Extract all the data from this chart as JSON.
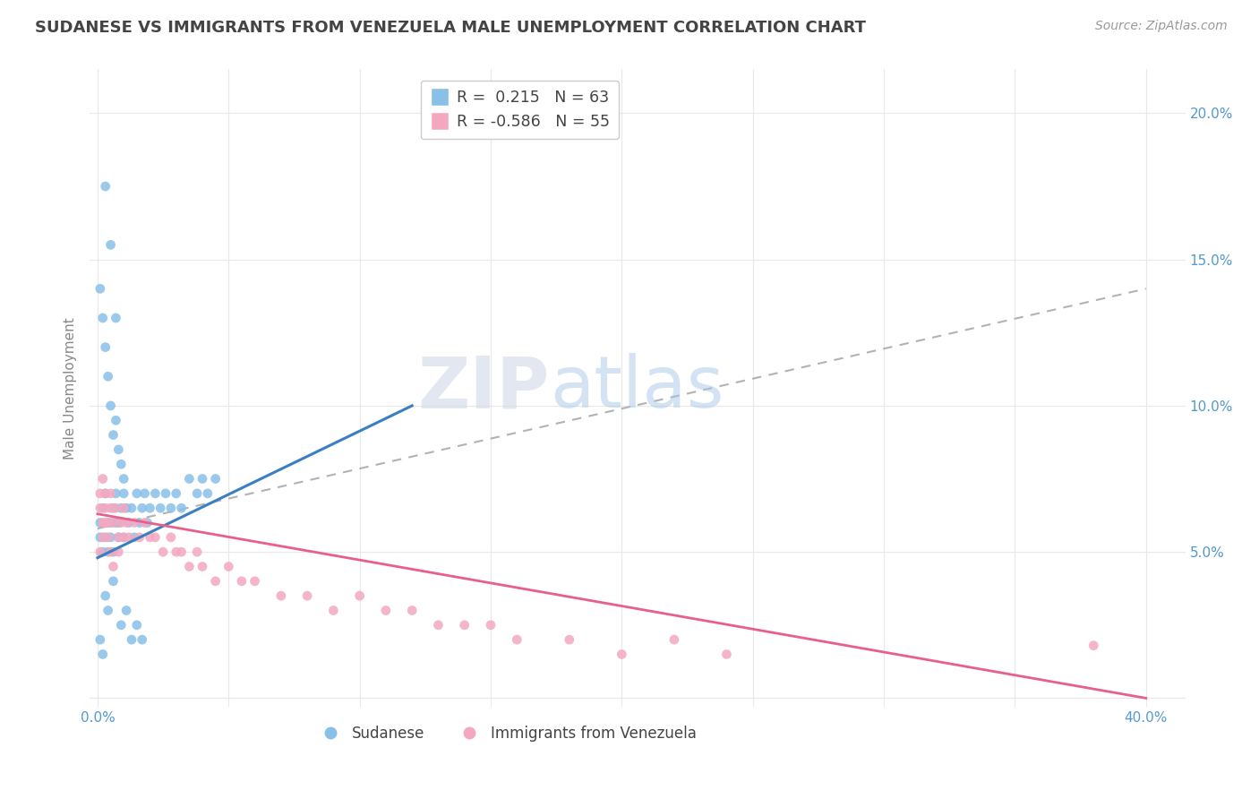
{
  "title": "SUDANESE VS IMMIGRANTS FROM VENEZUELA MALE UNEMPLOYMENT CORRELATION CHART",
  "source": "Source: ZipAtlas.com",
  "ylabel_label": "Male Unemployment",
  "watermark": "ZIPatlas",
  "sudanese_R": 0.215,
  "sudanese_N": 63,
  "venezuela_R": -0.586,
  "venezuela_N": 55,
  "xlim": [
    -0.003,
    0.415
  ],
  "ylim": [
    -0.003,
    0.215
  ],
  "blue_color": "#88c0e8",
  "pink_color": "#f4a8c0",
  "blue_line_color": "#3a7fc1",
  "pink_line_color": "#e8608a",
  "dashed_line_color": "#aaaaaa",
  "grid_color": "#e8e8e8",
  "title_color": "#444444",
  "source_color": "#999999",
  "axis_label_color": "#888888",
  "tick_label_color": "#5599cc",
  "legend_border_color": "#cccccc",
  "sudanese_x": [
    0.001,
    0.001,
    0.002,
    0.002,
    0.003,
    0.003,
    0.004,
    0.004,
    0.005,
    0.005,
    0.006,
    0.006,
    0.007,
    0.007,
    0.008,
    0.008,
    0.009,
    0.01,
    0.01,
    0.011,
    0.012,
    0.013,
    0.014,
    0.015,
    0.016,
    0.017,
    0.018,
    0.019,
    0.02,
    0.022,
    0.024,
    0.026,
    0.028,
    0.03,
    0.032,
    0.035,
    0.038,
    0.04,
    0.042,
    0.045,
    0.001,
    0.002,
    0.003,
    0.004,
    0.005,
    0.006,
    0.007,
    0.008,
    0.009,
    0.01,
    0.003,
    0.005,
    0.007,
    0.009,
    0.011,
    0.013,
    0.015,
    0.017,
    0.001,
    0.002,
    0.003,
    0.004,
    0.006
  ],
  "sudanese_y": [
    0.055,
    0.06,
    0.05,
    0.065,
    0.055,
    0.07,
    0.06,
    0.05,
    0.06,
    0.055,
    0.065,
    0.05,
    0.06,
    0.07,
    0.055,
    0.06,
    0.065,
    0.055,
    0.07,
    0.065,
    0.06,
    0.065,
    0.055,
    0.07,
    0.06,
    0.065,
    0.07,
    0.06,
    0.065,
    0.07,
    0.065,
    0.07,
    0.065,
    0.07,
    0.065,
    0.075,
    0.07,
    0.075,
    0.07,
    0.075,
    0.14,
    0.13,
    0.12,
    0.11,
    0.1,
    0.09,
    0.095,
    0.085,
    0.08,
    0.075,
    0.175,
    0.155,
    0.13,
    0.025,
    0.03,
    0.02,
    0.025,
    0.02,
    0.02,
    0.015,
    0.035,
    0.03,
    0.04
  ],
  "venezuela_x": [
    0.001,
    0.001,
    0.002,
    0.002,
    0.003,
    0.003,
    0.004,
    0.005,
    0.005,
    0.006,
    0.007,
    0.008,
    0.009,
    0.01,
    0.011,
    0.012,
    0.014,
    0.016,
    0.018,
    0.02,
    0.022,
    0.025,
    0.028,
    0.03,
    0.032,
    0.035,
    0.038,
    0.04,
    0.045,
    0.05,
    0.055,
    0.06,
    0.07,
    0.08,
    0.09,
    0.1,
    0.11,
    0.12,
    0.13,
    0.14,
    0.15,
    0.16,
    0.18,
    0.2,
    0.22,
    0.24,
    0.001,
    0.002,
    0.003,
    0.004,
    0.005,
    0.006,
    0.008,
    0.01,
    0.38
  ],
  "venezuela_y": [
    0.065,
    0.07,
    0.06,
    0.075,
    0.065,
    0.07,
    0.06,
    0.065,
    0.07,
    0.06,
    0.065,
    0.055,
    0.06,
    0.065,
    0.06,
    0.055,
    0.06,
    0.055,
    0.06,
    0.055,
    0.055,
    0.05,
    0.055,
    0.05,
    0.05,
    0.045,
    0.05,
    0.045,
    0.04,
    0.045,
    0.04,
    0.04,
    0.035,
    0.035,
    0.03,
    0.035,
    0.03,
    0.03,
    0.025,
    0.025,
    0.025,
    0.02,
    0.02,
    0.015,
    0.02,
    0.015,
    0.05,
    0.055,
    0.06,
    0.055,
    0.05,
    0.045,
    0.05,
    0.055,
    0.018
  ],
  "blue_line_x": [
    0.0,
    0.12
  ],
  "blue_line_y": [
    0.048,
    0.1
  ],
  "pink_line_x": [
    0.0,
    0.4
  ],
  "pink_line_y": [
    0.063,
    0.0
  ],
  "dash_line_x": [
    0.0,
    0.4
  ],
  "dash_line_y": [
    0.058,
    0.14
  ]
}
